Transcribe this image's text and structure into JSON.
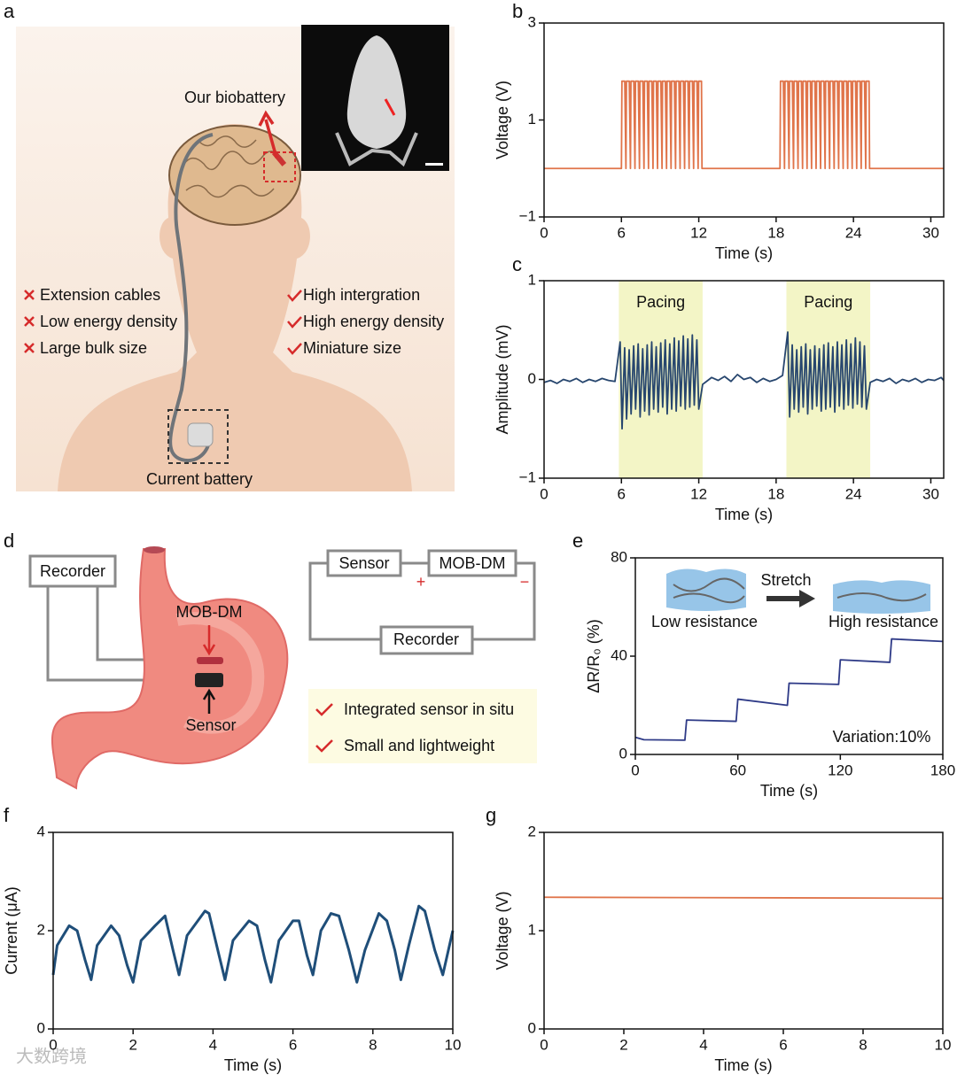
{
  "panels": {
    "a": {
      "label": "a",
      "callout": "Our biobattery",
      "cons": [
        "Extension cables",
        "Low energy density",
        "Large bulk size"
      ],
      "pros": [
        "High intergration",
        "High energy density",
        "Miniature size"
      ],
      "battery": "Current battery"
    },
    "d": {
      "label": "d",
      "recorder": "Recorder",
      "device": "MOB-DM",
      "sensor": "Sensor",
      "circuit": {
        "sensor": "Sensor",
        "device": "MOB-DM",
        "plus": "+",
        "minus": "−",
        "recorder": "Recorder"
      },
      "features": [
        "Integrated sensor in situ",
        "Small and lightweight"
      ]
    },
    "watermark": "大数跨境"
  },
  "chart_data": [
    {
      "panel": "b",
      "type": "line",
      "xlabel": "Time (s)",
      "ylabel": "Voltage (V)",
      "xlim": [
        0,
        31
      ],
      "ylim": [
        -1,
        3
      ],
      "xticks": [
        0,
        6,
        12,
        18,
        24,
        30
      ],
      "yticks": [
        {
          "value": -1,
          "label": "−1"
        },
        1,
        3
      ],
      "series": [
        {
          "color": "#e0744a",
          "x": [
            0,
            6,
            6.04,
            6.26,
            6.35,
            6.39,
            6.61,
            6.7,
            6.74,
            6.96,
            7.05,
            7.09,
            7.31,
            7.4,
            7.44,
            7.66,
            7.75,
            7.79,
            8.01,
            8.1,
            8.14,
            8.36,
            8.45,
            8.49,
            8.71,
            8.8,
            8.84,
            9.06,
            9.15,
            9.19,
            9.41,
            9.5,
            9.54,
            9.76,
            9.85,
            9.89,
            10.11,
            10.2,
            10.24,
            10.46,
            10.55,
            10.59,
            10.81,
            10.9,
            10.94,
            11.16,
            11.25,
            11.29,
            11.51,
            11.6,
            11.64,
            11.86,
            11.95,
            11.99,
            12.21,
            12.25,
            18.3,
            18.34,
            18.56,
            18.65,
            18.69,
            18.91,
            19,
            19.04,
            19.26,
            19.35,
            19.39,
            19.61,
            19.7,
            19.74,
            19.96,
            20.05,
            20.09,
            20.31,
            20.4,
            20.44,
            20.66,
            20.75,
            20.79,
            21.01,
            21.1,
            21.14,
            21.36,
            21.45,
            21.49,
            21.71,
            21.8,
            21.84,
            22.06,
            22.15,
            22.19,
            22.41,
            22.5,
            22.54,
            22.76,
            22.85,
            22.89,
            23.11,
            23.2,
            23.24,
            23.46,
            23.55,
            23.59,
            23.81,
            23.9,
            23.94,
            24.16,
            24.25,
            24.29,
            24.51,
            24.6,
            24.64,
            24.86,
            24.95,
            24.99,
            25.21,
            25.25,
            31
          ],
          "values": [
            0,
            0,
            1.8,
            1.8,
            0,
            1.8,
            1.8,
            0,
            1.8,
            1.8,
            0,
            1.8,
            1.8,
            0,
            1.8,
            1.8,
            0,
            1.8,
            1.8,
            0,
            1.8,
            1.8,
            0,
            1.8,
            1.8,
            0,
            1.8,
            1.8,
            0,
            1.8,
            1.8,
            0,
            1.8,
            1.8,
            0,
            1.8,
            1.8,
            0,
            1.8,
            1.8,
            0,
            1.8,
            1.8,
            0,
            1.8,
            1.8,
            0,
            1.8,
            1.8,
            0,
            1.8,
            1.8,
            0,
            1.8,
            1.8,
            0,
            0,
            1.8,
            1.8,
            0,
            1.8,
            1.8,
            0,
            1.8,
            1.8,
            0,
            1.8,
            1.8,
            0,
            1.8,
            1.8,
            0,
            1.8,
            1.8,
            0,
            1.8,
            1.8,
            0,
            1.8,
            1.8,
            0,
            1.8,
            1.8,
            0,
            1.8,
            1.8,
            0,
            1.8,
            1.8,
            0,
            1.8,
            1.8,
            0,
            1.8,
            1.8,
            0,
            1.8,
            1.8,
            0,
            1.8,
            1.8,
            0,
            1.8,
            1.8,
            0,
            1.8,
            1.8,
            0,
            1.8,
            1.8,
            0,
            1.8,
            1.8,
            0,
            1.8,
            1.8,
            0,
            0
          ]
        }
      ]
    },
    {
      "panel": "c",
      "type": "line",
      "xlabel": "Time (s)",
      "ylabel": "Amplitude (mV)",
      "xlim": [
        0,
        31
      ],
      "ylim": [
        -1,
        1
      ],
      "xticks": [
        0,
        6,
        12,
        18,
        24,
        30
      ],
      "yticks": [
        {
          "value": -1,
          "label": "−1"
        },
        0,
        1
      ],
      "shaded_regions": [
        {
          "range": [
            5.8,
            12.3
          ],
          "label": "Pacing"
        },
        {
          "range": [
            18.8,
            25.3
          ],
          "label": "Pacing"
        }
      ],
      "series": [
        {
          "color": "#27466e",
          "x": [
            0,
            0.5,
            1,
            1.5,
            2,
            2.5,
            3,
            3.5,
            4,
            4.5,
            5,
            5.5,
            5.9,
            6.05,
            6.25,
            6.4,
            6.6,
            6.75,
            6.95,
            7.1,
            7.3,
            7.45,
            7.65,
            7.8,
            8,
            8.15,
            8.35,
            8.5,
            8.7,
            8.85,
            9.05,
            9.2,
            9.4,
            9.55,
            9.75,
            9.9,
            10.1,
            10.25,
            10.45,
            10.6,
            10.8,
            10.95,
            11.15,
            11.3,
            11.5,
            11.65,
            11.85,
            12,
            12.3,
            12.6,
            13,
            13.5,
            14,
            14.5,
            15,
            15.5,
            16,
            16.5,
            17,
            17.5,
            18,
            18.5,
            18.9,
            19.05,
            19.25,
            19.4,
            19.6,
            19.75,
            19.95,
            20.1,
            20.3,
            20.45,
            20.65,
            20.8,
            21,
            21.15,
            21.35,
            21.5,
            21.7,
            21.85,
            22.05,
            22.2,
            22.4,
            22.55,
            22.75,
            22.9,
            23.1,
            23.25,
            23.45,
            23.6,
            23.8,
            23.95,
            24.15,
            24.3,
            24.5,
            24.65,
            24.85,
            25,
            25.3,
            25.8,
            26.3,
            26.8,
            27.3,
            27.8,
            28.3,
            28.8,
            29.3,
            29.8,
            30.3,
            30.8,
            31
          ],
          "values": [
            -0.03,
            -0.01,
            -0.04,
            0,
            -0.02,
            0.01,
            -0.03,
            0,
            -0.02,
            0.01,
            -0.01,
            -0.02,
            0.38,
            -0.5,
            0.32,
            -0.4,
            0.3,
            -0.35,
            0.34,
            -0.3,
            0.36,
            -0.38,
            0.31,
            -0.32,
            0.35,
            -0.36,
            0.38,
            -0.3,
            0.33,
            -0.33,
            0.37,
            -0.28,
            0.4,
            -0.35,
            0.36,
            -0.3,
            0.42,
            -0.32,
            0.39,
            -0.27,
            0.44,
            -0.3,
            0.41,
            -0.28,
            0.45,
            -0.26,
            0.4,
            -0.3,
            -0.05,
            -0.02,
            0.02,
            -0.01,
            0.03,
            -0.02,
            0.05,
            0,
            0.02,
            -0.03,
            0.01,
            -0.02,
            0,
            0.04,
            0.48,
            -0.38,
            0.35,
            -0.3,
            0.3,
            -0.33,
            0.33,
            -0.28,
            0.36,
            -0.35,
            0.3,
            -0.3,
            0.34,
            -0.27,
            0.31,
            -0.32,
            0.35,
            -0.3,
            0.37,
            -0.28,
            0.33,
            -0.33,
            0.38,
            -0.27,
            0.35,
            -0.3,
            0.4,
            -0.26,
            0.36,
            -0.29,
            0.42,
            -0.25,
            0.38,
            -0.28,
            0.34,
            -0.3,
            -0.03,
            0,
            -0.02,
            0.01,
            -0.04,
            0,
            -0.02,
            0.01,
            -0.03,
            0,
            -0.01,
            0.02,
            -0.01
          ]
        }
      ]
    },
    {
      "panel": "e",
      "type": "line",
      "xlabel": "Time (s)",
      "ylabel": "ΔR/R₀ (%)",
      "xlim": [
        0,
        180
      ],
      "ylim": [
        0,
        80
      ],
      "xticks": [
        0,
        60,
        120,
        180
      ],
      "yticks": [
        0,
        40,
        80
      ],
      "annotations": [
        "Low resistance",
        "Stretch",
        "High resistance",
        "Variation:10%"
      ],
      "series": [
        {
          "color": "#2e3a87",
          "x": [
            0,
            5,
            29,
            30,
            59,
            60,
            89,
            90,
            119,
            120,
            149,
            150,
            180
          ],
          "values": [
            7,
            6,
            5.8,
            14,
            13.5,
            22.5,
            20,
            29,
            28.5,
            38.5,
            37.5,
            47,
            46
          ]
        }
      ]
    },
    {
      "panel": "f",
      "type": "line",
      "xlabel": "Time (s)",
      "ylabel": "Current (μA)",
      "xlim": [
        0,
        10
      ],
      "ylim": [
        0,
        4
      ],
      "xticks": [
        0,
        2,
        4,
        6,
        8,
        10
      ],
      "yticks": [
        0,
        2,
        4
      ],
      "series": [
        {
          "color": "#1f4e79",
          "x": [
            0,
            0.1,
            0.4,
            0.6,
            0.8,
            0.95,
            1.1,
            1.45,
            1.65,
            1.85,
            2,
            2.2,
            2.55,
            2.8,
            3,
            3.15,
            3.35,
            3.8,
            3.9,
            4.15,
            4.3,
            4.5,
            4.9,
            5.1,
            5.3,
            5.45,
            5.65,
            6,
            6.15,
            6.35,
            6.5,
            6.7,
            6.95,
            7.15,
            7.4,
            7.6,
            7.8,
            8.15,
            8.35,
            8.55,
            8.7,
            8.9,
            9.15,
            9.3,
            9.55,
            9.75,
            10
          ],
          "values": [
            1.1,
            1.7,
            2.1,
            2,
            1.4,
            1,
            1.7,
            2.1,
            1.9,
            1.3,
            0.95,
            1.8,
            2.1,
            2.3,
            1.6,
            1.1,
            1.9,
            2.4,
            2.35,
            1.5,
            1,
            1.8,
            2.2,
            2.1,
            1.4,
            0.95,
            1.8,
            2.2,
            2.2,
            1.5,
            1.1,
            2,
            2.35,
            2.3,
            1.6,
            0.95,
            1.6,
            2.35,
            2.2,
            1.6,
            1,
            1.7,
            2.5,
            2.4,
            1.6,
            1.1,
            2
          ]
        }
      ]
    },
    {
      "panel": "g",
      "type": "line",
      "xlabel": "Time (s)",
      "ylabel": "Voltage (V)",
      "xlim": [
        0,
        10
      ],
      "ylim": [
        0,
        2
      ],
      "xticks": [
        0,
        2,
        4,
        6,
        8,
        10
      ],
      "yticks": [
        0,
        1,
        2
      ],
      "series": [
        {
          "color": "#e0744a",
          "x": [
            0,
            10
          ],
          "values": [
            1.34,
            1.33
          ]
        }
      ]
    }
  ]
}
